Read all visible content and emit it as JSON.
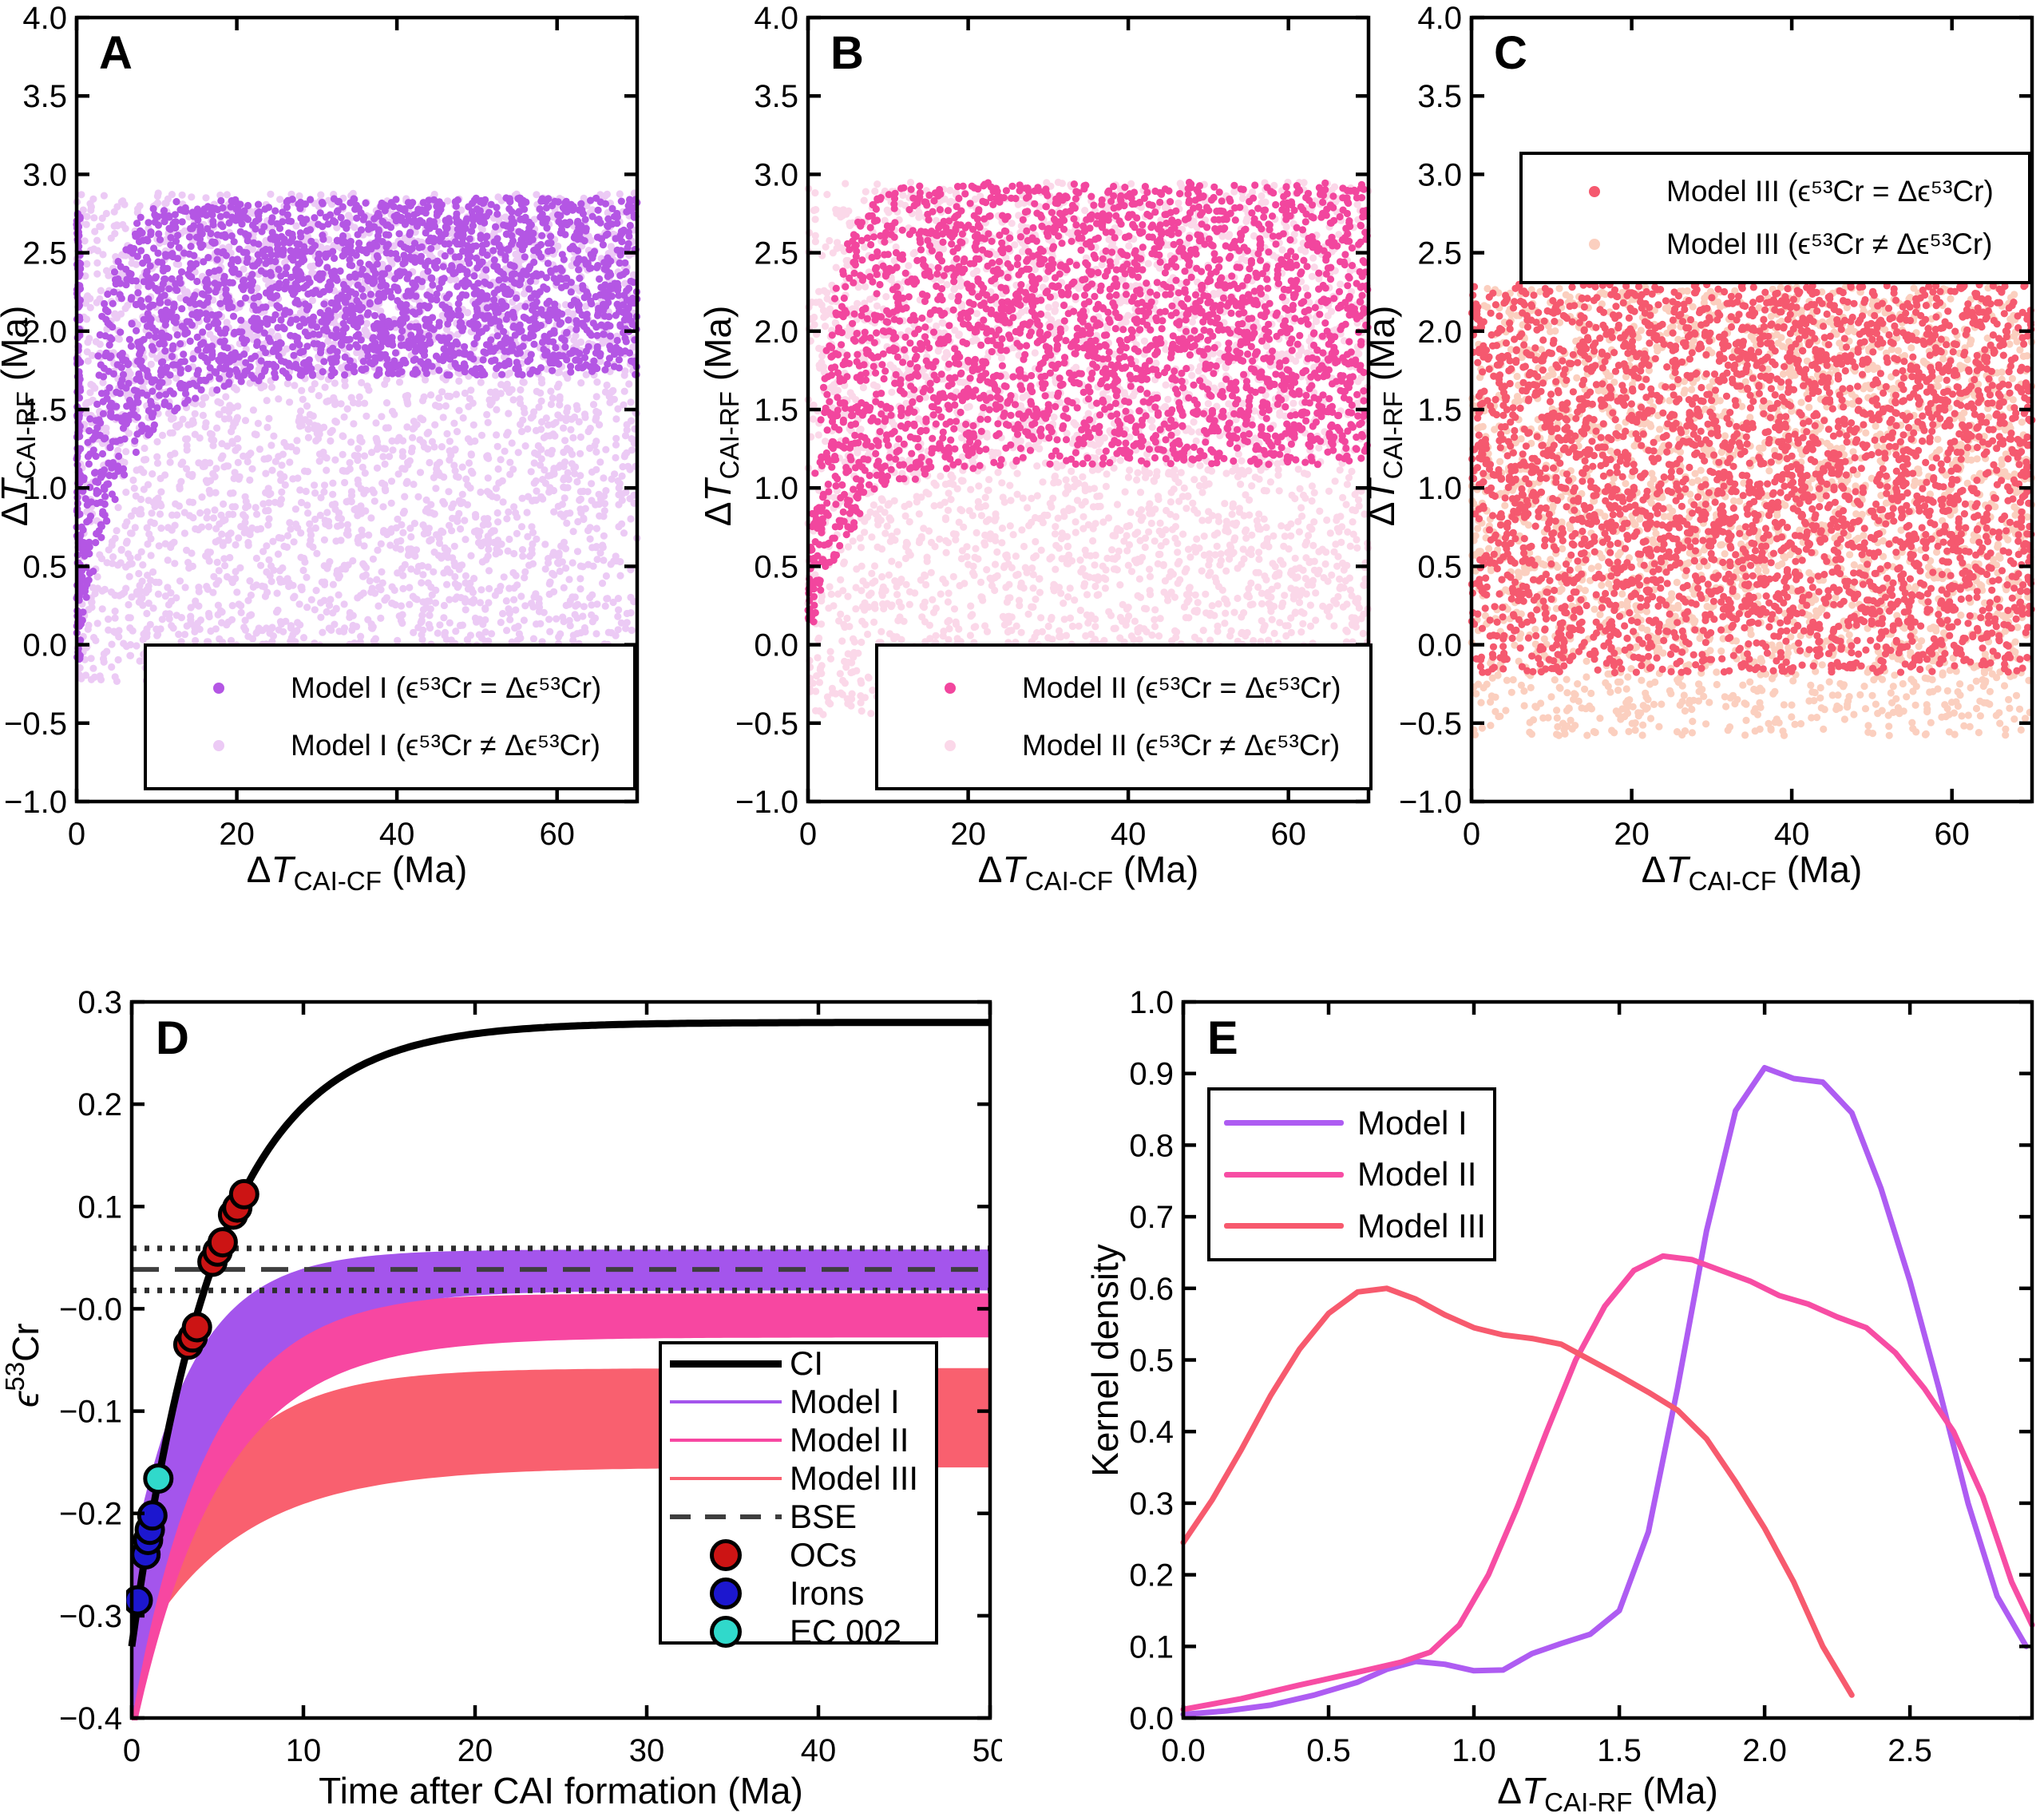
{
  "chart_data": [
    {
      "panel": "A",
      "type": "scatter",
      "xlabel": {
        "d": "Δ",
        "t": "T",
        "sub": "CAI-CF",
        "post": " (Ma)"
      },
      "ylabel": {
        "d": "Δ",
        "t": "T",
        "sub": "CAI-RF",
        "post": " (Ma)"
      },
      "xlim": [
        0,
        70
      ],
      "ylim": [
        -1,
        4
      ],
      "xticks": [
        {
          "v": 0,
          "l": "0"
        },
        {
          "v": 20,
          "l": "20"
        },
        {
          "v": 40,
          "l": "40"
        },
        {
          "v": 60,
          "l": "60"
        }
      ],
      "yticks": [
        {
          "v": 4,
          "l": "4.0"
        },
        {
          "v": 3.5,
          "l": "3.5"
        },
        {
          "v": 3,
          "l": "3.0"
        },
        {
          "v": 2.5,
          "l": "2.5"
        },
        {
          "v": 2,
          "l": "2.0"
        },
        {
          "v": 1.5,
          "l": "1.5"
        },
        {
          "v": 1,
          "l": "1.0"
        },
        {
          "v": 0.5,
          "l": "0.5"
        },
        {
          "v": 0,
          "l": "0.0"
        },
        {
          "v": -0.5,
          "l": "−0.5"
        },
        {
          "v": -1,
          "l": "−1.0"
        }
      ],
      "series": [
        {
          "name": "Model I (ϵ⁵³Cr ≠ Δϵ⁵³Cr)",
          "color": "#eccaf5",
          "n": 3300,
          "seed": 2,
          "r": 4.6,
          "ymin": -0.25,
          "ymax": 2.88
        },
        {
          "name": "Model I (ϵ⁵³Cr = Δϵ⁵³Cr)",
          "color": "#b456e4",
          "n": 2400,
          "seed": 3,
          "r": 4.6,
          "upper": {
            "plateau": 2.85,
            "amp": 2.45,
            "tau": 2.6
          },
          "lower": {
            "plateau": 1.72,
            "amp": 1.77,
            "tau": 6
          },
          "edge": {
            "n": 150,
            "xmax": 0.5,
            "ymin": -0.1,
            "ymax": 2.75
          }
        }
      ],
      "legend": [
        {
          "label": "Model I (ϵ⁵³Cr = Δϵ⁵³Cr)",
          "color": "#b456e4"
        },
        {
          "label": "Model I (ϵ⁵³Cr ≠ Δϵ⁵³Cr)",
          "color": "#eccaf5"
        }
      ]
    },
    {
      "panel": "B",
      "type": "scatter",
      "xlabel": {
        "d": "Δ",
        "t": "T",
        "sub": "CAI-CF",
        "post": " (Ma)"
      },
      "ylabel": {
        "d": "Δ",
        "t": "T",
        "sub": "CAI-RF",
        "post": " (Ma)"
      },
      "xlim": [
        0,
        70
      ],
      "ylim": [
        -1,
        4
      ],
      "xticks": [
        {
          "v": 0,
          "l": "0"
        },
        {
          "v": 20,
          "l": "20"
        },
        {
          "v": 40,
          "l": "40"
        },
        {
          "v": 60,
          "l": "60"
        }
      ],
      "yticks": [
        {
          "v": 4,
          "l": "4.0"
        },
        {
          "v": 3.5,
          "l": "3.5"
        },
        {
          "v": 3,
          "l": "3.0"
        },
        {
          "v": 2.5,
          "l": "2.5"
        },
        {
          "v": 2,
          "l": "2.0"
        },
        {
          "v": 1.5,
          "l": "1.5"
        },
        {
          "v": 1,
          "l": "1.0"
        },
        {
          "v": 0.5,
          "l": "0.5"
        },
        {
          "v": 0,
          "l": "0.0"
        },
        {
          "v": -0.5,
          "l": "−0.5"
        },
        {
          "v": -1,
          "l": "−1.0"
        }
      ],
      "series": [
        {
          "name": "Model II (ϵ⁵³Cr ≠ Δϵ⁵³Cr)",
          "color": "#fbd8e9",
          "n": 3300,
          "seed": 5,
          "r": 4.6,
          "ymin": -0.45,
          "ymax": 2.95
        },
        {
          "name": "Model II (ϵ⁵³Cr = Δϵ⁵³Cr)",
          "color": "#f2469e",
          "n": 2700,
          "seed": 6,
          "r": 4.6,
          "upper": {
            "plateau": 2.95,
            "amp": 2.6,
            "tau": 2.6
          },
          "lower": {
            "plateau": 1.15,
            "amp": 1.15,
            "tau": 5.5
          }
        }
      ],
      "legend": [
        {
          "label": "Model II (ϵ⁵³Cr = Δϵ⁵³Cr)",
          "color": "#f2469e"
        },
        {
          "label": "Model II (ϵ⁵³Cr ≠ Δϵ⁵³Cr)",
          "color": "#fbd8e9"
        }
      ]
    },
    {
      "panel": "C",
      "type": "scatter",
      "xlabel": {
        "d": "Δ",
        "t": "T",
        "sub": "CAI-CF",
        "post": " (Ma)"
      },
      "ylabel": {
        "d": "Δ",
        "t": "T",
        "sub": "CAI-RF",
        "post": " (Ma)"
      },
      "xlim": [
        0,
        70
      ],
      "ylim": [
        -1,
        4
      ],
      "xticks": [
        {
          "v": 0,
          "l": "0"
        },
        {
          "v": 20,
          "l": "20"
        },
        {
          "v": 40,
          "l": "40"
        },
        {
          "v": 60,
          "l": "60"
        }
      ],
      "yticks": [
        {
          "v": 4,
          "l": "4.0"
        },
        {
          "v": 3.5,
          "l": "3.5"
        },
        {
          "v": 3,
          "l": "3.0"
        },
        {
          "v": 2.5,
          "l": "2.5"
        },
        {
          "v": 2,
          "l": "2.0"
        },
        {
          "v": 1.5,
          "l": "1.5"
        },
        {
          "v": 1,
          "l": "1.0"
        },
        {
          "v": 0.5,
          "l": "0.5"
        },
        {
          "v": 0,
          "l": "0.0"
        },
        {
          "v": -0.5,
          "l": "−0.5"
        },
        {
          "v": -1,
          "l": "−1.0"
        }
      ],
      "series": [
        {
          "name": "Model III (ϵ⁵³Cr ≠ Δϵ⁵³Cr)",
          "color": "#fbcfbf",
          "n": 2500,
          "seed": 8,
          "r": 4.6,
          "ymin": -0.58,
          "ymax": 2.28
        },
        {
          "name": "Model III (ϵ⁵³Cr = Δϵ⁵³Cr)",
          "color": "#f5596f",
          "n": 3400,
          "seed": 9,
          "r": 4.6,
          "ymin": -0.18,
          "ymax": 2.3
        }
      ],
      "legend": [
        {
          "label": "Model III (ϵ⁵³Cr = Δϵ⁵³Cr)",
          "color": "#f5596f"
        },
        {
          "label": "Model III (ϵ⁵³Cr ≠ Δϵ⁵³Cr)",
          "color": "#fbcfbf"
        }
      ]
    },
    {
      "panel": "D",
      "type": "evolution",
      "xlabel": {
        "d": "",
        "t": "",
        "sub": "",
        "post": "Time after CAI formation (Ma)"
      },
      "ylabel": {
        "d": "",
        "t": "ϵ",
        "sup": "53",
        "post": "Cr"
      },
      "xlim": [
        0,
        50
      ],
      "ylim": [
        -0.4,
        0.3
      ],
      "xticks": [
        {
          "v": 0,
          "l": "0"
        },
        {
          "v": 10,
          "l": "10"
        },
        {
          "v": 20,
          "l": "20"
        },
        {
          "v": 30,
          "l": "30"
        },
        {
          "v": 40,
          "l": "40"
        },
        {
          "v": 50,
          "l": "50"
        }
      ],
      "yticks": [
        {
          "v": 0.3,
          "l": "0.3"
        },
        {
          "v": 0.2,
          "l": "0.2"
        },
        {
          "v": 0.1,
          "l": "0.1"
        },
        {
          "v": 0,
          "l": "−0.0"
        },
        {
          "v": -0.1,
          "l": "−0.1"
        },
        {
          "v": -0.2,
          "l": "−0.2"
        },
        {
          "v": -0.3,
          "l": "−0.3"
        },
        {
          "v": -0.4,
          "l": "−0.4"
        }
      ],
      "bands": [
        {
          "name": "Model III",
          "color": "#f9606f",
          "upper": {
            "plateau": -0.058,
            "amp": 0.3,
            "tau": 4.5
          },
          "lower": {
            "plateau": -0.155,
            "amp": 0.19,
            "tau": 6
          }
        },
        {
          "name": "Model II",
          "color": "#f747a1",
          "upper": {
            "plateau": 0.015,
            "amp": 0.33,
            "tau": 4.2
          },
          "lower": {
            "plateau": -0.028,
            "amp": 0.4,
            "tau": 5
          }
        },
        {
          "name": "Model I",
          "color": "#a455ec",
          "upper": {
            "plateau": 0.058,
            "amp": 0.3,
            "tau": 3.6
          },
          "lower": {
            "plateau": 0.018,
            "amp": 0.42,
            "tau": 4.5
          }
        }
      ],
      "ci_curve": {
        "name": "CI",
        "color": "#000000",
        "plateau": 0.28,
        "amp": 0.61,
        "tau": 5,
        "width": 9
      },
      "ref_lines": [
        {
          "name": "BSE upper bound",
          "y": 0.059,
          "style": "dotted",
          "color": "#2e2e2e"
        },
        {
          "name": "BSE",
          "y": 0.0385,
          "style": "dashed",
          "color": "#3e3e3e"
        },
        {
          "name": "BSE lower bound",
          "y": 0.018,
          "style": "dotted",
          "color": "#2e2e2e"
        }
      ],
      "points": [
        {
          "name": "OCs",
          "color": "#cc1414",
          "data": [
            [
              3.3,
              -0.035
            ],
            [
              3.55,
              -0.028
            ],
            [
              3.8,
              -0.018
            ],
            [
              4.7,
              0.046
            ],
            [
              5.0,
              0.056
            ],
            [
              5.3,
              0.065
            ],
            [
              5.9,
              0.092
            ],
            [
              6.15,
              0.099
            ],
            [
              6.55,
              0.112
            ]
          ]
        },
        {
          "name": "Irons",
          "color": "#1c17cf",
          "data": [
            [
              0.35,
              -0.285
            ],
            [
              0.8,
              -0.24
            ],
            [
              0.95,
              -0.226
            ],
            [
              1.05,
              -0.216
            ],
            [
              1.2,
              -0.202
            ]
          ]
        },
        {
          "name": "EC 002",
          "color": "#30d9cb",
          "data": [
            [
              1.55,
              -0.166
            ]
          ]
        }
      ],
      "legend": [
        {
          "label": "CI",
          "swatch": "line-thick",
          "color": "#000000"
        },
        {
          "label": "Model I",
          "swatch": "line",
          "color": "#a455ec"
        },
        {
          "label": "Model II",
          "swatch": "line",
          "color": "#f747a1"
        },
        {
          "label": "Model III",
          "swatch": "line",
          "color": "#f9606f"
        },
        {
          "label": "BSE",
          "swatch": "dash",
          "color": "#3e3e3e"
        },
        {
          "label": "OCs",
          "swatch": "circle",
          "color": "#cc1414"
        },
        {
          "label": "Irons",
          "swatch": "circle",
          "color": "#1c17cf"
        },
        {
          "label": "EC 002",
          "swatch": "circle",
          "color": "#30d9cb"
        }
      ]
    },
    {
      "panel": "E",
      "type": "kde",
      "xlabel": {
        "d": "Δ",
        "t": "T",
        "sub": "CAI-RF",
        "post": " (Ma)"
      },
      "ylabel": {
        "d": "",
        "t": "",
        "post": "Kernel density"
      },
      "xlim": [
        0,
        2.92
      ],
      "ylim": [
        0,
        1
      ],
      "xticks": [
        {
          "v": 0,
          "l": "0.0"
        },
        {
          "v": 0.5,
          "l": "0.5"
        },
        {
          "v": 1,
          "l": "1.0"
        },
        {
          "v": 1.5,
          "l": "1.5"
        },
        {
          "v": 2,
          "l": "2.0"
        },
        {
          "v": 2.5,
          "l": "2.5"
        }
      ],
      "yticks": [
        {
          "v": 1,
          "l": "1.0"
        },
        {
          "v": 0.9,
          "l": "0.9"
        },
        {
          "v": 0.8,
          "l": "0.8"
        },
        {
          "v": 0.7,
          "l": "0.7"
        },
        {
          "v": 0.6,
          "l": "0.6"
        },
        {
          "v": 0.5,
          "l": "0.5"
        },
        {
          "v": 0.4,
          "l": "0.4"
        },
        {
          "v": 0.3,
          "l": "0.3"
        },
        {
          "v": 0.2,
          "l": "0.2"
        },
        {
          "v": 0.1,
          "l": "0.1"
        },
        {
          "v": 0,
          "l": "0.0"
        }
      ],
      "series": [
        {
          "name": "Model I",
          "color": "#ae5cf2",
          "points": [
            [
              0,
              0.005
            ],
            [
              0.15,
              0.01
            ],
            [
              0.3,
              0.018
            ],
            [
              0.45,
              0.032
            ],
            [
              0.6,
              0.05
            ],
            [
              0.7,
              0.068
            ],
            [
              0.8,
              0.079
            ],
            [
              0.9,
              0.075
            ],
            [
              1.0,
              0.066
            ],
            [
              1.1,
              0.067
            ],
            [
              1.2,
              0.09
            ],
            [
              1.3,
              0.104
            ],
            [
              1.4,
              0.117
            ],
            [
              1.5,
              0.15
            ],
            [
              1.6,
              0.26
            ],
            [
              1.7,
              0.46
            ],
            [
              1.8,
              0.68
            ],
            [
              1.9,
              0.848
            ],
            [
              2.0,
              0.908
            ],
            [
              2.1,
              0.893
            ],
            [
              2.2,
              0.888
            ],
            [
              2.3,
              0.845
            ],
            [
              2.4,
              0.74
            ],
            [
              2.5,
              0.61
            ],
            [
              2.6,
              0.46
            ],
            [
              2.7,
              0.3
            ],
            [
              2.8,
              0.17
            ],
            [
              2.9,
              0.1
            ]
          ]
        },
        {
          "name": "Model II",
          "color": "#f74da4",
          "points": [
            [
              0,
              0.012
            ],
            [
              0.2,
              0.027
            ],
            [
              0.4,
              0.046
            ],
            [
              0.6,
              0.064
            ],
            [
              0.75,
              0.078
            ],
            [
              0.85,
              0.092
            ],
            [
              0.95,
              0.13
            ],
            [
              1.05,
              0.2
            ],
            [
              1.15,
              0.295
            ],
            [
              1.25,
              0.4
            ],
            [
              1.35,
              0.5
            ],
            [
              1.45,
              0.575
            ],
            [
              1.55,
              0.625
            ],
            [
              1.65,
              0.645
            ],
            [
              1.75,
              0.64
            ],
            [
              1.85,
              0.625
            ],
            [
              1.95,
              0.61
            ],
            [
              2.05,
              0.59
            ],
            [
              2.15,
              0.578
            ],
            [
              2.25,
              0.56
            ],
            [
              2.35,
              0.545
            ],
            [
              2.45,
              0.51
            ],
            [
              2.55,
              0.46
            ],
            [
              2.65,
              0.4
            ],
            [
              2.75,
              0.31
            ],
            [
              2.85,
              0.19
            ],
            [
              2.92,
              0.13
            ]
          ]
        },
        {
          "name": "Model III",
          "color": "#f75a6e",
          "points": [
            [
              0,
              0.245
            ],
            [
              0.1,
              0.305
            ],
            [
              0.2,
              0.375
            ],
            [
              0.3,
              0.45
            ],
            [
              0.4,
              0.515
            ],
            [
              0.5,
              0.565
            ],
            [
              0.6,
              0.595
            ],
            [
              0.7,
              0.6
            ],
            [
              0.8,
              0.585
            ],
            [
              0.9,
              0.563
            ],
            [
              1.0,
              0.545
            ],
            [
              1.1,
              0.535
            ],
            [
              1.2,
              0.53
            ],
            [
              1.3,
              0.522
            ],
            [
              1.4,
              0.5
            ],
            [
              1.5,
              0.478
            ],
            [
              1.6,
              0.455
            ],
            [
              1.7,
              0.43
            ],
            [
              1.8,
              0.39
            ],
            [
              1.9,
              0.33
            ],
            [
              2.0,
              0.265
            ],
            [
              2.1,
              0.19
            ],
            [
              2.2,
              0.1
            ],
            [
              2.3,
              0.032
            ]
          ]
        }
      ],
      "legend": [
        {
          "label": "Model I",
          "color": "#ae5cf2"
        },
        {
          "label": "Model II",
          "color": "#f74da4"
        },
        {
          "label": "Model III",
          "color": "#f75a6e"
        }
      ]
    }
  ]
}
